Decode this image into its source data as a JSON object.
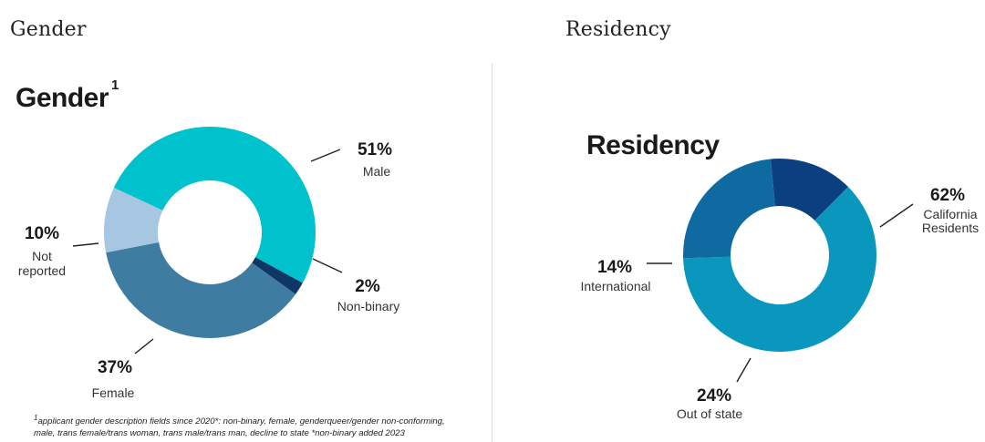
{
  "section_labels": {
    "gender": "Gender",
    "residency": "Residency"
  },
  "footnote": {
    "marker": "1",
    "line1": "applicant gender description fields since 2020*: non-binary, female, genderqueer/gender non-conforming,",
    "line2": "male, trans female/trans woman, trans male/trans man, decline to state *non-binary added 2023"
  },
  "chart_data": [
    {
      "type": "pie",
      "title": "Gender",
      "title_superscript": "1",
      "donut": true,
      "slices": [
        {
          "label": "Male",
          "value": 51,
          "display": "51%",
          "color": "#00c2cc"
        },
        {
          "label": "Non-binary",
          "value": 2,
          "display": "2%",
          "color": "#0e3766"
        },
        {
          "label": "Female",
          "value": 37,
          "display": "37%",
          "color": "#3e7ca2"
        },
        {
          "label": "Not reported",
          "value": 10,
          "display": "10%",
          "color": "#a6c6e1"
        }
      ]
    },
    {
      "type": "pie",
      "title": "Residency",
      "donut": true,
      "slices": [
        {
          "label": "California Residents",
          "value": 62,
          "display": "62%",
          "color": "#0a97be"
        },
        {
          "label": "Out of state",
          "value": 24,
          "display": "24%",
          "color": "#0f6aa1"
        },
        {
          "label": "International",
          "value": 14,
          "display": "14%",
          "color": "#0b3f7f"
        }
      ]
    }
  ]
}
